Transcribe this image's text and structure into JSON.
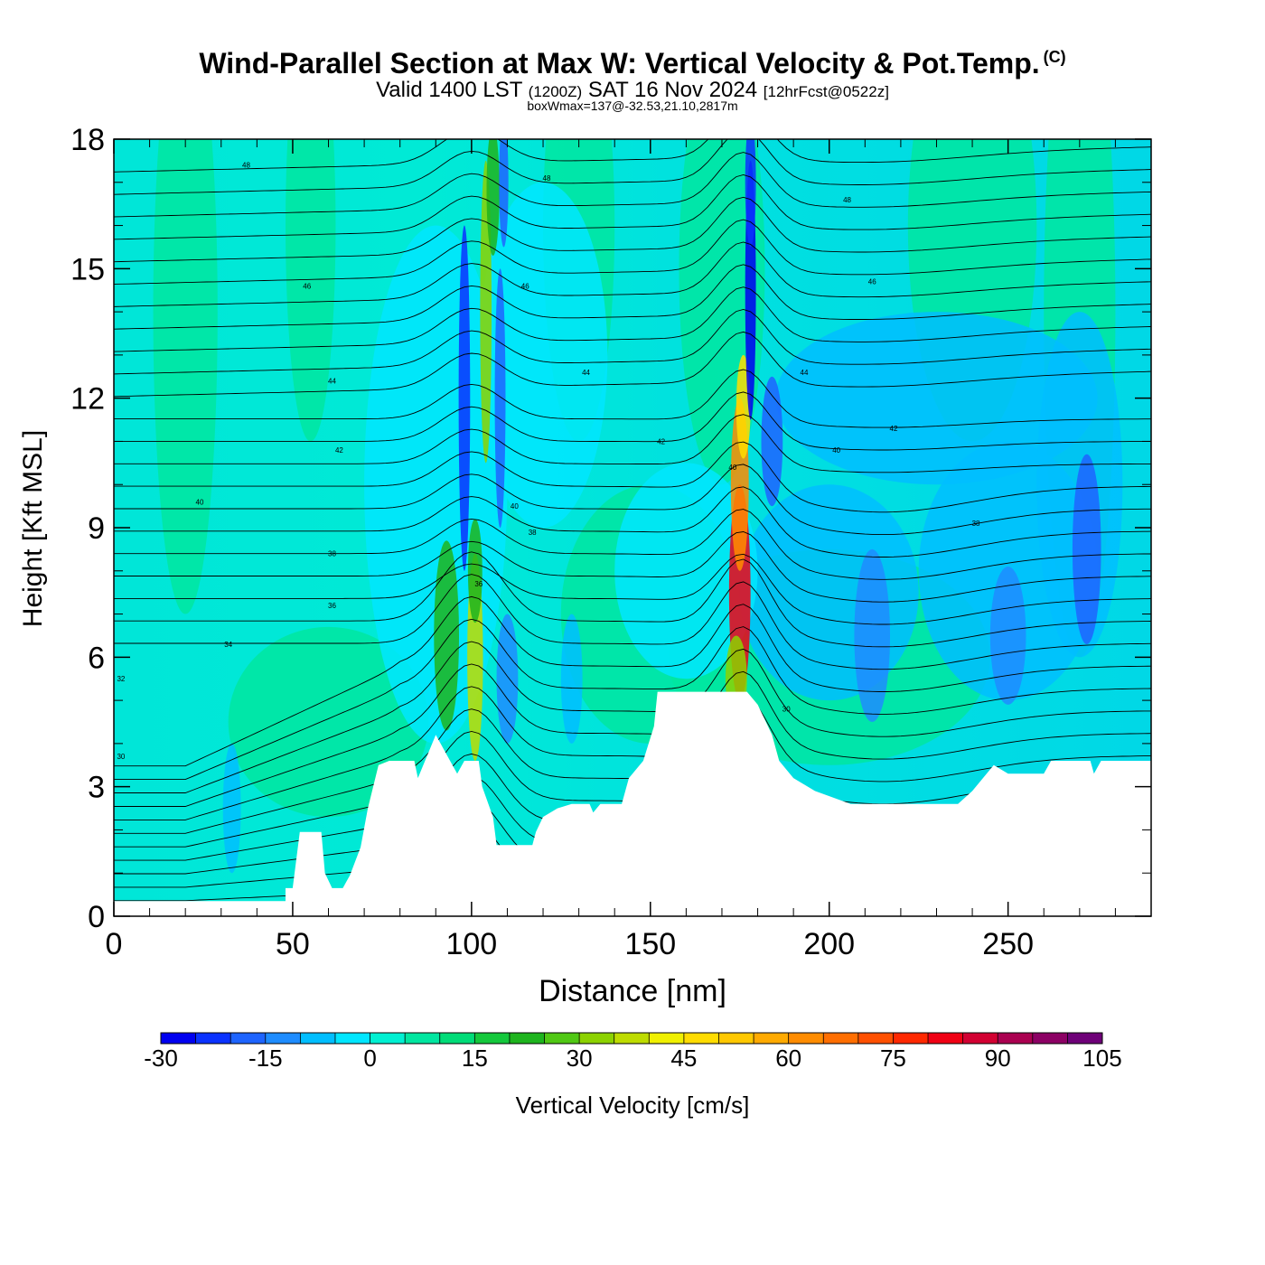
{
  "header": {
    "title": "Wind-Parallel Section at Max W: Vertical Velocity & Pot.Temp.",
    "copyright": "(C)",
    "valid_prefix": "Valid 1400 LST",
    "valid_utc": "(1200Z)",
    "valid_date": "SAT 16 Nov 2024",
    "forecast": "[12hrFcst@0522z]",
    "boxwmax": "boxWmax=137@-32.53,21.10,2817m"
  },
  "chart_data": {
    "type": "heatmap",
    "xlabel": "Distance [nm]",
    "ylabel": "Height [Kft MSL]",
    "xlim": [
      0,
      290
    ],
    "ylim": [
      0,
      18
    ],
    "xticks": [
      0,
      50,
      100,
      150,
      200,
      250
    ],
    "yticks": [
      0,
      3,
      6,
      9,
      12,
      15,
      18
    ],
    "colorbar": {
      "label": "Vertical Velocity [cm/s]",
      "min": -30,
      "max": 105,
      "step": 5,
      "tick_values": [
        -30,
        -15,
        0,
        15,
        30,
        45,
        60,
        75,
        90,
        105
      ],
      "tick_labels": [
        "-30",
        "-15",
        "0",
        "15",
        "30",
        "45",
        "60",
        "75",
        "90",
        "105"
      ],
      "colors": [
        "#0000f0",
        "#0a32ff",
        "#1e64ff",
        "#1e8cff",
        "#00beff",
        "#00e6ff",
        "#00f0d2",
        "#00e6a0",
        "#00dc78",
        "#14c83c",
        "#1eb41e",
        "#50c814",
        "#8cd200",
        "#bedc00",
        "#f0f000",
        "#ffdc00",
        "#ffc800",
        "#ffaa00",
        "#ff8c00",
        "#ff6e00",
        "#ff5000",
        "#ff2800",
        "#f00014",
        "#d20032",
        "#aa0050",
        "#8c0064",
        "#6e0078"
      ]
    },
    "theta_labels": [
      {
        "x": 37,
        "y": 17.4,
        "text": "48"
      },
      {
        "x": 121,
        "y": 17.1,
        "text": "48"
      },
      {
        "x": 205,
        "y": 16.6,
        "text": "48"
      },
      {
        "x": 54,
        "y": 14.6,
        "text": "46"
      },
      {
        "x": 115,
        "y": 14.6,
        "text": "46"
      },
      {
        "x": 212,
        "y": 14.7,
        "text": "46"
      },
      {
        "x": 61,
        "y": 12.4,
        "text": "44"
      },
      {
        "x": 132,
        "y": 12.6,
        "text": "44"
      },
      {
        "x": 193,
        "y": 12.6,
        "text": "44"
      },
      {
        "x": 63,
        "y": 10.8,
        "text": "42"
      },
      {
        "x": 153,
        "y": 11.0,
        "text": "42"
      },
      {
        "x": 218,
        "y": 11.3,
        "text": "42"
      },
      {
        "x": 24,
        "y": 9.6,
        "text": "40"
      },
      {
        "x": 112,
        "y": 9.5,
        "text": "40"
      },
      {
        "x": 173,
        "y": 10.4,
        "text": "40"
      },
      {
        "x": 202,
        "y": 10.8,
        "text": "40"
      },
      {
        "x": 61,
        "y": 8.4,
        "text": "38"
      },
      {
        "x": 117,
        "y": 8.9,
        "text": "38"
      },
      {
        "x": 241,
        "y": 9.1,
        "text": "38"
      },
      {
        "x": 61,
        "y": 7.2,
        "text": "36"
      },
      {
        "x": 102,
        "y": 7.7,
        "text": "36"
      },
      {
        "x": 32,
        "y": 6.3,
        "text": "34"
      },
      {
        "x": 2,
        "y": 5.5,
        "text": "32"
      },
      {
        "x": 2,
        "y": 3.7,
        "text": "30"
      },
      {
        "x": 188,
        "y": 4.8,
        "text": "30"
      }
    ]
  }
}
